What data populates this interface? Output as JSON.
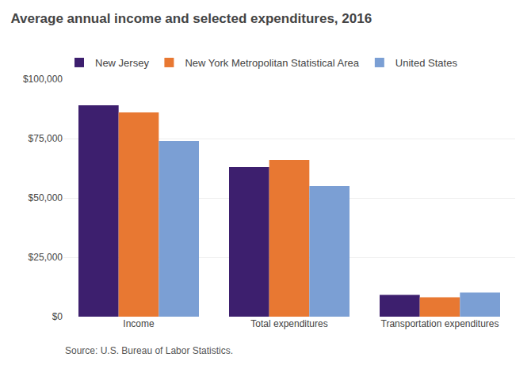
{
  "chart_data": {
    "type": "bar",
    "title": "Average annual income and selected expenditures, 2016",
    "categories": [
      "Income",
      "Total expenditures",
      "Transportation expenditures"
    ],
    "series": [
      {
        "name": "New Jersey",
        "color": "#3d1f6e",
        "values": [
          89000,
          63000,
          9200
        ]
      },
      {
        "name": "New York Metropolitan Statistical Area",
        "color": "#e87832",
        "values": [
          86000,
          66000,
          8200
        ]
      },
      {
        "name": "United States",
        "color": "#7b9fd4",
        "values": [
          74000,
          55000,
          10200
        ]
      }
    ],
    "ylim": [
      0,
      100000
    ],
    "yticks": [
      {
        "value": 0,
        "label": "$0"
      },
      {
        "value": 25000,
        "label": "$25,000"
      },
      {
        "value": 50000,
        "label": "$50,000"
      },
      {
        "value": 75000,
        "label": "$75,000"
      },
      {
        "value": 100000,
        "label": "$100,000"
      }
    ],
    "grid": true,
    "legend": "top",
    "annotations": [
      "Source: U.S. Bureau of Labor Statistics."
    ]
  }
}
